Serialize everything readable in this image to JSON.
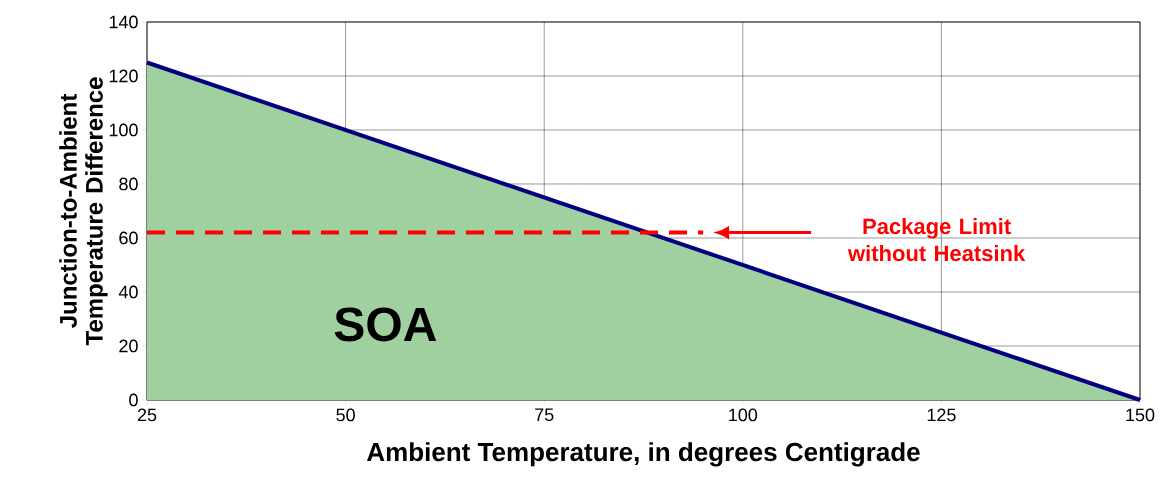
{
  "chart_data": {
    "type": "area",
    "xlabel": "Ambient Temperature, in degrees Centigrade",
    "ylabel": "Junction-to-Ambient Temperature Difference",
    "series": [
      {
        "color": "#a0cfa0",
        "x": [
          25,
          150
        ],
        "values": [
          125,
          0
        ]
      },
      {
        "type": "line",
        "color": "#ff0000",
        "line_style": "dashed",
        "x": [
          25,
          95
        ],
        "values": [
          62,
          62
        ]
      }
    ],
    "xlim": [
      25,
      150
    ],
    "xticks": [
      25,
      50,
      75,
      100,
      125,
      150
    ],
    "ylim": [
      0,
      140
    ],
    "yticks": [
      0,
      20,
      40,
      60,
      80,
      100,
      120,
      140
    ],
    "grid": true,
    "annotations": [
      "SOA",
      "Package Limit without Heatsink"
    ]
  }
}
